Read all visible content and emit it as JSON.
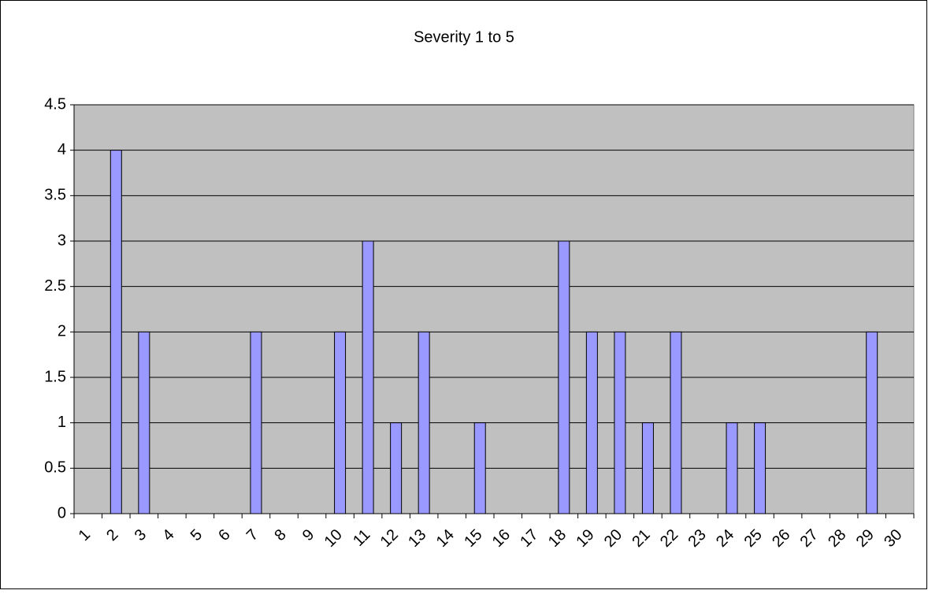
{
  "chart_data": {
    "type": "bar",
    "title": "Severity 1 to 5",
    "categories": [
      "1",
      "2",
      "3",
      "4",
      "5",
      "6",
      "7",
      "8",
      "9",
      "10",
      "11",
      "12",
      "13",
      "14",
      "15",
      "16",
      "17",
      "18",
      "19",
      "20",
      "21",
      "22",
      "23",
      "24",
      "25",
      "26",
      "27",
      "28",
      "29",
      "30"
    ],
    "values": [
      0,
      4,
      2,
      0,
      0,
      0,
      2,
      0,
      0,
      2,
      3,
      1,
      2,
      0,
      1,
      0,
      0,
      3,
      2,
      2,
      1,
      2,
      0,
      1,
      1,
      0,
      0,
      0,
      2,
      0
    ],
    "color": "#9999ff",
    "ylim": [
      0,
      4.5
    ],
    "yticks": [
      0,
      0.5,
      1,
      1.5,
      2,
      2.5,
      3,
      3.5,
      4,
      4.5
    ],
    "grid": true
  }
}
